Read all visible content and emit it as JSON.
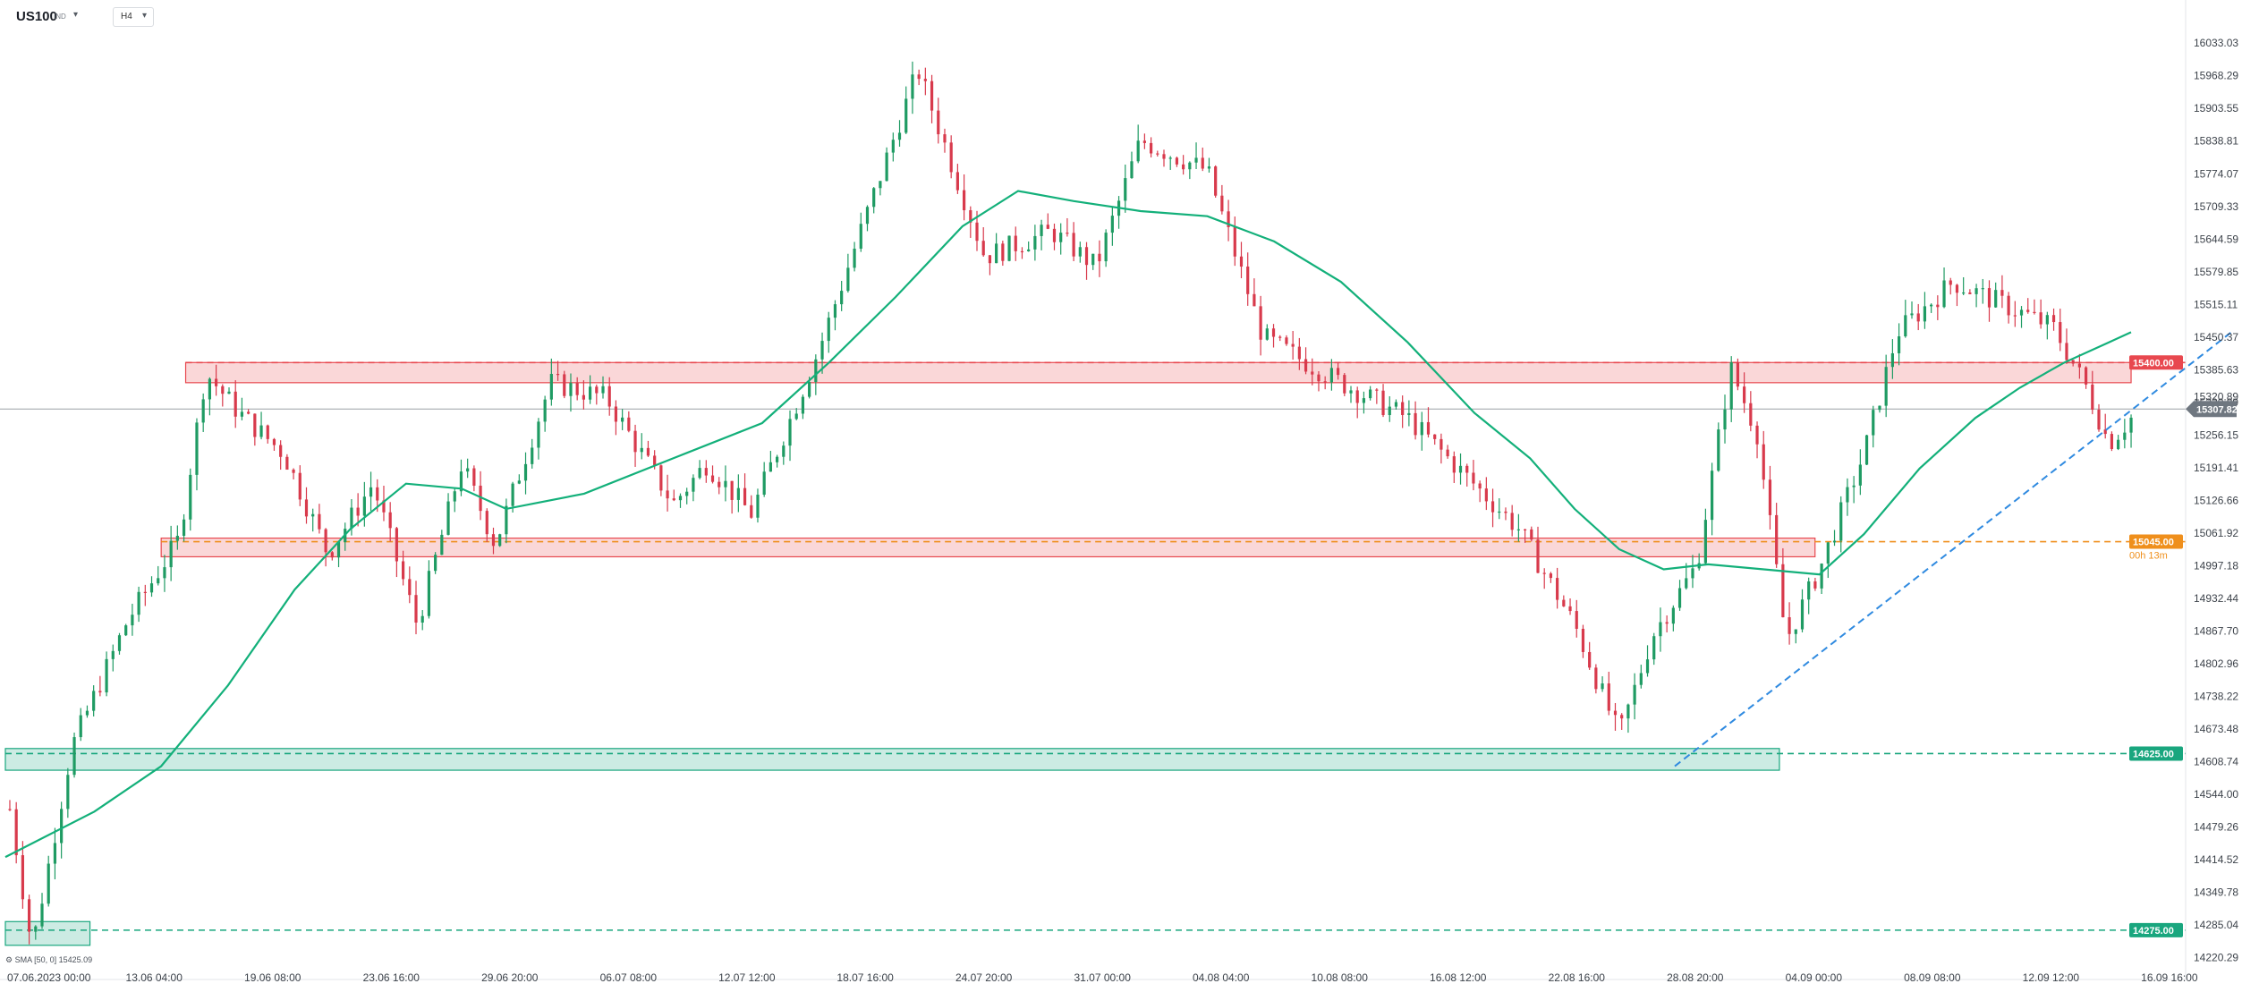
{
  "header": {
    "symbol": "US100",
    "symbol_sub": "IND",
    "timeframe": "H4"
  },
  "indicator_legend": "SMA [50, 0]  15425.09",
  "colors": {
    "bull": "#1f9b63",
    "bear": "#d83a4c",
    "sma": "#13b07a",
    "resistance": "#e8484f",
    "support_orange": "#ef8f1c",
    "support_green": "#19a67e",
    "trendline": "#2f8ae0",
    "price_line": "#9aa0a6",
    "current_tag": "#6f7780"
  },
  "chart_data": {
    "type": "candlestick",
    "title": "",
    "xlabel": "",
    "ylabel": "",
    "ylim": [
      14195,
      16083
    ],
    "y_ticks": [
      "16033.03",
      "15968.29",
      "15903.55",
      "15838.81",
      "15774.07",
      "15709.33",
      "15644.59",
      "15579.85",
      "15515.11",
      "15450.37",
      "15385.63",
      "15320.89",
      "15256.15",
      "15191.41",
      "15126.66",
      "15061.92",
      "14997.18",
      "14932.44",
      "14867.70",
      "14802.96",
      "14738.22",
      "14673.48",
      "14608.74",
      "14544.00",
      "14479.26",
      "14414.52",
      "14349.78",
      "14285.04",
      "14220.29"
    ],
    "x_ticks": [
      "07.06.2023  00:00",
      "13.06  04:00",
      "19.06  08:00",
      "23.06  16:00",
      "29.06  20:00",
      "06.07  08:00",
      "12.07  12:00",
      "18.07  16:00",
      "24.07  20:00",
      "31.07  00:00",
      "04.08  04:00",
      "10.08  08:00",
      "16.08  12:00",
      "22.08  16:00",
      "28.08  20:00",
      "04.09  00:00",
      "08.09  08:00",
      "12.09  12:00",
      "16.09  16:00"
    ],
    "x_tick_fractions": [
      0.0,
      0.0577,
      0.1154,
      0.1731,
      0.2308,
      0.2885,
      0.3462,
      0.4038,
      0.4615,
      0.5192,
      0.5769,
      0.6346,
      0.6923,
      0.75,
      0.8077,
      0.8654,
      0.9231,
      0.9808,
      1.0385
    ],
    "price_path": [
      [
        0.0,
        14570
      ],
      [
        0.012,
        14240
      ],
      [
        0.03,
        14640
      ],
      [
        0.055,
        14890
      ],
      [
        0.078,
        15050
      ],
      [
        0.09,
        15380
      ],
      [
        0.105,
        15300
      ],
      [
        0.125,
        15220
      ],
      [
        0.145,
        15020
      ],
      [
        0.165,
        15160
      ],
      [
        0.185,
        14880
      ],
      [
        0.205,
        15200
      ],
      [
        0.22,
        15040
      ],
      [
        0.245,
        15360
      ],
      [
        0.27,
        15330
      ],
      [
        0.3,
        15120
      ],
      [
        0.315,
        15200
      ],
      [
        0.335,
        15100
      ],
      [
        0.365,
        15420
      ],
      [
        0.385,
        15670
      ],
      [
        0.41,
        15980
      ],
      [
        0.44,
        15610
      ],
      [
        0.47,
        15660
      ],
      [
        0.49,
        15590
      ],
      [
        0.51,
        15840
      ],
      [
        0.54,
        15780
      ],
      [
        0.565,
        15450
      ],
      [
        0.6,
        15360
      ],
      [
        0.63,
        15290
      ],
      [
        0.655,
        15180
      ],
      [
        0.68,
        15070
      ],
      [
        0.705,
        14880
      ],
      [
        0.725,
        14660
      ],
      [
        0.74,
        14860
      ],
      [
        0.76,
        15000
      ],
      [
        0.775,
        15390
      ],
      [
        0.787,
        15260
      ],
      [
        0.8,
        14850
      ],
      [
        0.815,
        14990
      ],
      [
        0.835,
        15220
      ],
      [
        0.85,
        15460
      ],
      [
        0.875,
        15560
      ],
      [
        0.895,
        15520
      ],
      [
        0.92,
        15470
      ],
      [
        0.935,
        15350
      ],
      [
        0.945,
        15240
      ],
      [
        0.955,
        15290
      ]
    ],
    "sma_label": "SMA [50, 0]",
    "sma_value": 15425.09,
    "sma_path": [
      [
        0.0,
        14420
      ],
      [
        0.04,
        14510
      ],
      [
        0.07,
        14600
      ],
      [
        0.1,
        14760
      ],
      [
        0.13,
        14950
      ],
      [
        0.155,
        15070
      ],
      [
        0.18,
        15160
      ],
      [
        0.205,
        15150
      ],
      [
        0.225,
        15110
      ],
      [
        0.26,
        15140
      ],
      [
        0.3,
        15210
      ],
      [
        0.34,
        15280
      ],
      [
        0.37,
        15400
      ],
      [
        0.4,
        15530
      ],
      [
        0.43,
        15670
      ],
      [
        0.455,
        15740
      ],
      [
        0.48,
        15720
      ],
      [
        0.51,
        15700
      ],
      [
        0.54,
        15690
      ],
      [
        0.57,
        15640
      ],
      [
        0.6,
        15560
      ],
      [
        0.63,
        15440
      ],
      [
        0.66,
        15300
      ],
      [
        0.685,
        15210
      ],
      [
        0.705,
        15110
      ],
      [
        0.725,
        15030
      ],
      [
        0.745,
        14990
      ],
      [
        0.765,
        15000
      ],
      [
        0.79,
        14990
      ],
      [
        0.815,
        14980
      ],
      [
        0.835,
        15060
      ],
      [
        0.86,
        15190
      ],
      [
        0.885,
        15290
      ],
      [
        0.905,
        15350
      ],
      [
        0.925,
        15400
      ],
      [
        0.945,
        15440
      ],
      [
        0.955,
        15460
      ]
    ],
    "levels": [
      {
        "value": 15400.0,
        "label": "15400.00",
        "color": "#e8484f",
        "zone": [
          15360,
          15400
        ],
        "zone_x": [
          0.081,
          0.955
        ]
      },
      {
        "value": 15045.0,
        "label": "15045.00",
        "color": "#ef8f1c",
        "zone": [
          15015,
          15052
        ],
        "zone_x": [
          0.07,
          0.813
        ],
        "zone_color": "#e8484f"
      },
      {
        "value": 14625.0,
        "label": "14625.00",
        "color": "#19a67e",
        "zone": [
          14592,
          14635
        ],
        "zone_x": [
          0.0,
          0.797
        ]
      },
      {
        "value": 14275.0,
        "label": "14275.00",
        "color": "#19a67e",
        "zone": [
          14245,
          14292
        ],
        "zone_x": [
          0.0,
          0.038
        ]
      }
    ],
    "trendline": {
      "from": [
        0.75,
        14600
      ],
      "to": [
        1.0,
        15460
      ]
    },
    "current_price": {
      "value": 15307.82,
      "label": "15307.82"
    },
    "partial_tick": "15320.89",
    "countdown": "00h 13m"
  }
}
